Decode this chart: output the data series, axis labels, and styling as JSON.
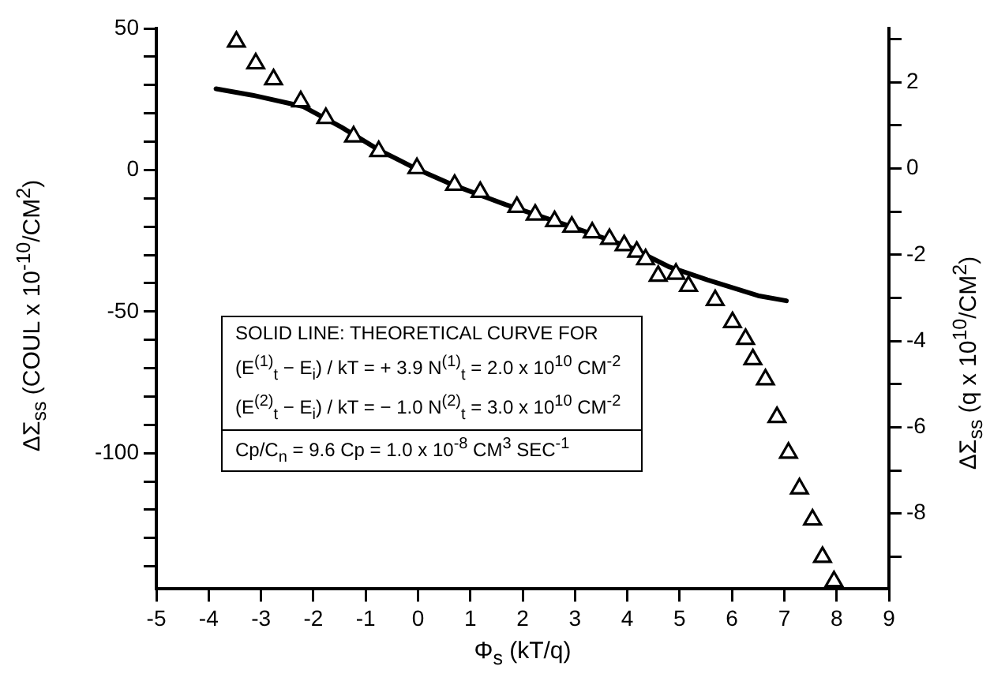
{
  "chart_data": {
    "type": "scatter",
    "xlabel": "Φ$_{s}$ (kT/q)",
    "ylabel": "ΔΣ$_{ss}$ (COUL x 10$^{-10}$/CM$^{2}$)",
    "y2label": "ΔΣ$_{ss}$ (q x 10$^{10}$/CM$^{2}$)",
    "xlim": [
      -5,
      9
    ],
    "xticks": [
      -5,
      -4,
      -3,
      -2,
      -1,
      0,
      1,
      2,
      3,
      4,
      5,
      6,
      7,
      8,
      9
    ],
    "ylim": [
      -148,
      50
    ],
    "yticks": [
      {
        "value": -140,
        "label": null
      },
      {
        "value": -130,
        "label": null
      },
      {
        "value": -120,
        "label": null
      },
      {
        "value": -110,
        "label": null
      },
      -100,
      {
        "value": -90,
        "label": null
      },
      {
        "value": -80,
        "label": null
      },
      {
        "value": -70,
        "label": null
      },
      {
        "value": -60,
        "label": null
      },
      -50,
      {
        "value": -40,
        "label": null
      },
      {
        "value": -30,
        "label": null
      },
      {
        "value": -20,
        "label": null
      },
      {
        "value": -10,
        "label": null
      },
      0,
      {
        "value": 10,
        "label": null
      },
      {
        "value": 20,
        "label": null
      },
      {
        "value": 30,
        "label": null
      },
      {
        "value": 40,
        "label": null
      },
      50
    ],
    "y2lim": [
      -9.75,
      3.25
    ],
    "y2ticks": [
      {
        "value": -9,
        "label": null
      },
      -8,
      {
        "value": -7,
        "label": null
      },
      -6,
      {
        "value": -5,
        "label": null
      },
      -4,
      {
        "value": -3,
        "label": null
      },
      -2,
      {
        "value": -1,
        "label": null
      },
      0,
      {
        "value": 1,
        "label": null
      },
      2,
      {
        "value": 3,
        "label": null
      }
    ],
    "grid": false,
    "legend": false,
    "series": [
      {
        "marker": "triangle",
        "color": "#000000",
        "x": [
          -3.47,
          -3.1,
          -2.76,
          -2.24,
          -1.76,
          -1.23,
          -0.75,
          -0.02,
          0.7,
          1.19,
          1.89,
          2.24,
          2.61,
          2.94,
          3.33,
          3.66,
          3.94,
          4.18,
          4.35,
          4.59,
          4.93,
          5.17,
          5.68,
          6.01,
          6.26,
          6.4,
          6.64,
          6.86,
          7.08,
          7.29,
          7.54,
          7.73,
          7.95
        ],
        "values": [
          45.3,
          37.6,
          32,
          24.2,
          18.3,
          11.8,
          6.6,
          0.6,
          -5.3,
          -7.8,
          -13.1,
          -15.8,
          -18.1,
          -20.1,
          -22.1,
          -24.4,
          -26.6,
          -28.9,
          -31.6,
          -37.4,
          -36.7,
          -41,
          -46,
          -53.8,
          -59.7,
          -66.9,
          -74,
          -87.3,
          -99.9,
          -112.5,
          -123.5,
          -136.7,
          -145.3
        ]
      },
      {
        "type": "line",
        "marker": "none",
        "line_style": "solid",
        "color": "#000000",
        "x": [
          -3.86,
          -3.16,
          -2.19,
          -1.47,
          -0.75,
          -0.02,
          0.7,
          1.67,
          2.88,
          4.08,
          4.81,
          5.53,
          6.5,
          7.04
        ],
        "values": [
          28.7,
          26.4,
          22.4,
          15.2,
          7.1,
          0.3,
          -5.5,
          -12.2,
          -19.7,
          -27.5,
          -34.3,
          -38.8,
          -44.4,
          -46.2
        ]
      }
    ],
    "annotations": [
      "SOLID LINE: THEORETICAL CURVE FOR",
      "(E$^{(1)}$$_{t}$ − E$_{i}$) / kT = + 3.9   N$^{(1)}$$_{t}$ = 2.0 x 10$^{10}$ CM$^{-2}$",
      "(E$^{(2)}$$_{t}$ − E$_{i}$) / kT = − 1.0   N$^{(2)}$$_{t}$ = 3.0 x 10$^{10}$ CM$^{-2}$",
      "Cp/C$_{n}$ = 9.6  Cp = 1.0 x 10$^{-8}$ CM$^{3}$ SEC$^{-1}$"
    ]
  }
}
